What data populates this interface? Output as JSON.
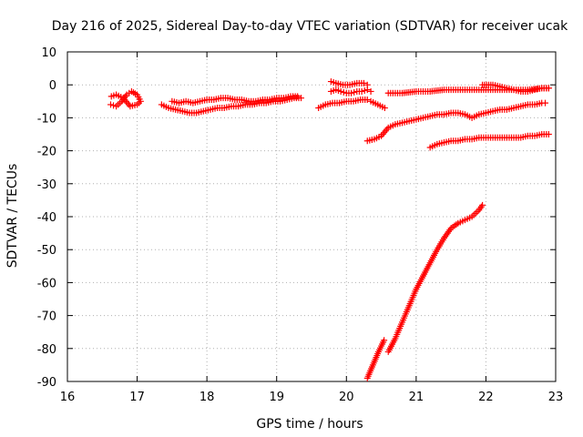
{
  "chart_data": {
    "type": "scatter",
    "title": "Day 216 of 2025, Sidereal Day-to-day VTEC variation (SDTVAR) for receiver ucak",
    "xlabel": "GPS time / hours",
    "ylabel": "SDTVAR / TECUs",
    "xlim": [
      16,
      23
    ],
    "ylim": [
      -90,
      10
    ],
    "xticks": [
      16,
      17,
      18,
      19,
      20,
      21,
      22,
      23
    ],
    "yticks": [
      10,
      0,
      -10,
      -20,
      -30,
      -40,
      -50,
      -60,
      -70,
      -80,
      -90
    ],
    "grid": true,
    "marker": "plus",
    "color": "#ff0000",
    "series": [
      {
        "name": "arc-1",
        "x": [
          16.62,
          16.7,
          16.78,
          16.85,
          16.92,
          17.0,
          17.05,
          17.0,
          16.9,
          16.8,
          16.7,
          16.63
        ],
        "y": [
          -6,
          -6.5,
          -5,
          -3,
          -2,
          -3,
          -5,
          -6,
          -6.5,
          -4,
          -3,
          -3.5
        ]
      },
      {
        "name": "arc-2",
        "x": [
          17.35,
          17.45,
          17.55,
          17.65,
          17.75,
          17.85,
          17.95,
          18.05,
          18.15,
          18.25,
          18.35,
          18.45,
          18.55,
          18.65,
          18.75,
          18.85,
          18.95,
          19.05,
          19.15,
          19.25,
          19.35
        ],
        "y": [
          -6,
          -7,
          -7.5,
          -8,
          -8.5,
          -8.5,
          -8,
          -7.5,
          -7,
          -7,
          -6.5,
          -6.5,
          -6,
          -6,
          -5.5,
          -5.5,
          -5,
          -5,
          -4.5,
          -4,
          -4
        ]
      },
      {
        "name": "arc-2b",
        "x": [
          17.5,
          17.6,
          17.7,
          17.8,
          17.9,
          18.0,
          18.1,
          18.2,
          18.3,
          18.4,
          18.5,
          18.6,
          18.7,
          18.8,
          18.9,
          19.0,
          19.1,
          19.2,
          19.3
        ],
        "y": [
          -5,
          -5.5,
          -5,
          -5.5,
          -5,
          -4.5,
          -4.5,
          -4,
          -4,
          -4.5,
          -4.5,
          -5,
          -5,
          -4.5,
          -4.5,
          -4,
          -4,
          -3.5,
          -3.5
        ]
      },
      {
        "name": "arc-3",
        "x": [
          19.78,
          19.85,
          19.92,
          20.0,
          20.07,
          20.15,
          20.22,
          20.3,
          20.35
        ],
        "y": [
          -2,
          -1.5,
          -2,
          -2.5,
          -2.5,
          -2,
          -2,
          -1.5,
          -2
        ]
      },
      {
        "name": "arc-3b",
        "x": [
          19.78,
          19.85,
          19.95,
          20.05,
          20.15,
          20.25,
          20.3
        ],
        "y": [
          1,
          0.5,
          0,
          0,
          0.5,
          0.5,
          0
        ]
      },
      {
        "name": "arc-4",
        "x": [
          19.6,
          19.7,
          19.8,
          19.9,
          20.0,
          20.1,
          20.2,
          20.3
        ],
        "y": [
          -7,
          -6,
          -5.5,
          -5.5,
          -5,
          -5,
          -4.5,
          -4.5
        ]
      },
      {
        "name": "arc-5",
        "x": [
          20.35,
          20.45,
          20.55
        ],
        "y": [
          -5,
          -6,
          -7
        ]
      },
      {
        "name": "arc-6",
        "x": [
          20.6,
          20.8,
          21.0,
          21.2,
          21.4,
          21.6,
          21.8,
          22.0,
          22.2,
          22.4,
          22.6,
          22.8,
          22.9
        ],
        "y": [
          -2.5,
          -2.5,
          -2,
          -2,
          -1.5,
          -1.5,
          -1.5,
          -1.5,
          -1.5,
          -1.5,
          -1.5,
          -1,
          -1
        ]
      },
      {
        "name": "arc-7",
        "x": [
          21.95,
          22.1,
          22.2,
          22.3,
          22.4,
          22.5,
          22.6,
          22.7,
          22.8,
          22.9
        ],
        "y": [
          0,
          0,
          -0.5,
          -1,
          -1.5,
          -2,
          -2,
          -1.5,
          -1,
          -1
        ]
      },
      {
        "name": "arc-8",
        "x": [
          20.3,
          20.4,
          20.5,
          20.6,
          20.7,
          20.8,
          20.9,
          21.0,
          21.1,
          21.2,
          21.3,
          21.4,
          21.5,
          21.6,
          21.7,
          21.8,
          21.9,
          22.0,
          22.1,
          22.2,
          22.3,
          22.4,
          22.5,
          22.6,
          22.7,
          22.8,
          22.85
        ],
        "y": [
          -17,
          -16.5,
          -15.5,
          -13,
          -12,
          -11.5,
          -11,
          -10.5,
          -10,
          -9.5,
          -9,
          -9,
          -8.5,
          -8.5,
          -9,
          -10,
          -9,
          -8.5,
          -8,
          -7.5,
          -7.5,
          -7,
          -6.5,
          -6,
          -6,
          -5.5,
          -5.5
        ]
      },
      {
        "name": "arc-9",
        "x": [
          21.2,
          21.3,
          21.4,
          21.5,
          21.6,
          21.7,
          21.8,
          21.9,
          22.0,
          22.1,
          22.2,
          22.3,
          22.4,
          22.5,
          22.6,
          22.7,
          22.8,
          22.9
        ],
        "y": [
          -19,
          -18,
          -17.5,
          -17,
          -17,
          -16.5,
          -16.5,
          -16,
          -16,
          -16,
          -16,
          -16,
          -16,
          -16,
          -15.5,
          -15.5,
          -15,
          -15
        ]
      },
      {
        "name": "arc-10",
        "x": [
          20.3,
          20.38,
          20.46,
          20.54
        ],
        "y": [
          -89,
          -85,
          -81,
          -77.5
        ]
      },
      {
        "name": "arc-11",
        "x": [
          20.6,
          20.7,
          20.8,
          20.9,
          21.0,
          21.1,
          21.2,
          21.3,
          21.4,
          21.5,
          21.6,
          21.7,
          21.8,
          21.9,
          21.95
        ],
        "y": [
          -81,
          -77,
          -72,
          -67,
          -62,
          -58,
          -54,
          -50,
          -46.5,
          -43.5,
          -42,
          -41,
          -40,
          -38,
          -36.5
        ]
      }
    ]
  }
}
